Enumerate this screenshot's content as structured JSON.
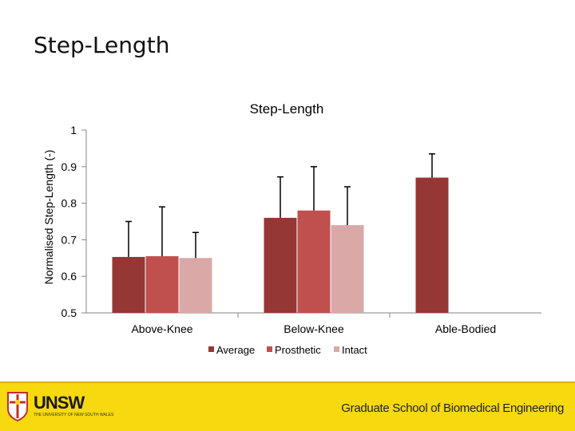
{
  "slide": {
    "title": "Step-Length"
  },
  "chart_data": {
    "type": "bar",
    "title": "Step-Length",
    "xlabel": "",
    "ylabel": "Normalised Step-Length (-)",
    "ylim": [
      0.5,
      1
    ],
    "yticks": [
      0.5,
      0.6,
      0.7,
      0.8,
      0.9,
      1
    ],
    "ytick_labels": [
      "0.5",
      "0.6",
      "0.7",
      "0.8",
      "0.9",
      "1"
    ],
    "categories": [
      "Above-Knee",
      "Below-Knee",
      "Able-Bodied"
    ],
    "legend_position": "bottom",
    "series": [
      {
        "name": "Average",
        "color": "#953735",
        "values": [
          0.653,
          0.76,
          0.87
        ],
        "errors": [
          0.097,
          0.112,
          0.065
        ]
      },
      {
        "name": "Prosthetic",
        "color": "#c0504d",
        "values": [
          0.655,
          0.78,
          null
        ],
        "errors": [
          0.135,
          0.12,
          null
        ]
      },
      {
        "name": "Intact",
        "color": "#d9a8a7",
        "values": [
          0.65,
          0.74,
          null
        ],
        "errors": [
          0.07,
          0.105,
          null
        ]
      }
    ]
  },
  "footer": {
    "logo_text": "UNSW",
    "logo_subtext": "THE UNIVERSITY OF NEW SOUTH WALES",
    "school_name": "Graduate School of Biomedical Engineering",
    "bar_color": "#f6d90f"
  }
}
